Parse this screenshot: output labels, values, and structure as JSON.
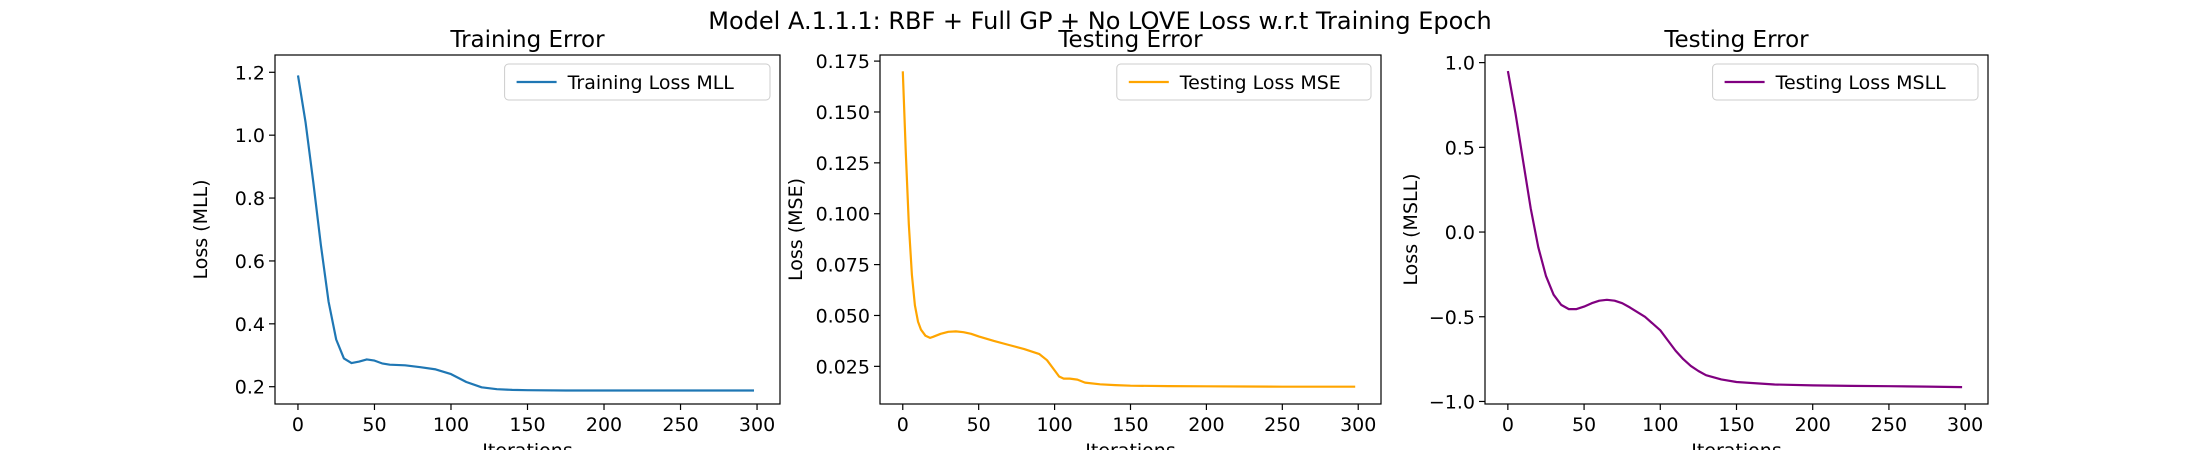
{
  "figure": {
    "suptitle": "Model A.1.1.1: RBF + Full GP + No LOVE Loss w.r.t Training Epoch"
  },
  "chart_data": [
    {
      "type": "line",
      "title": "Training Error",
      "xlabel": "Iterations",
      "ylabel": "Loss (MLL)",
      "xlim": [
        -15,
        315
      ],
      "ylim": [
        0.145,
        1.255
      ],
      "xticks": [
        0,
        50,
        100,
        150,
        200,
        250,
        300
      ],
      "xtick_labels": [
        "0",
        "50",
        "100",
        "150",
        "200",
        "250",
        "300"
      ],
      "yticks": [
        0.2,
        0.4,
        0.6,
        0.8,
        1.0,
        1.2
      ],
      "ytick_labels": [
        "0.2",
        "0.4",
        "0.6",
        "0.8",
        "1.0",
        "1.2"
      ],
      "legend_position": "upper right",
      "series": [
        {
          "name": "Training Loss MLL",
          "color": "#1f77b4",
          "x": [
            0,
            5,
            10,
            15,
            20,
            25,
            30,
            35,
            40,
            45,
            50,
            55,
            60,
            70,
            80,
            90,
            100,
            110,
            120,
            130,
            140,
            150,
            175,
            200,
            225,
            250,
            275,
            298
          ],
          "y": [
            1.19,
            1.04,
            0.85,
            0.65,
            0.47,
            0.35,
            0.29,
            0.275,
            0.28,
            0.287,
            0.283,
            0.274,
            0.27,
            0.268,
            0.262,
            0.255,
            0.24,
            0.215,
            0.198,
            0.192,
            0.19,
            0.189,
            0.188,
            0.188,
            0.188,
            0.188,
            0.188,
            0.188
          ]
        }
      ]
    },
    {
      "type": "line",
      "title": "Testing Error",
      "xlabel": "Iterations",
      "ylabel": "Loss (MSE)",
      "xlim": [
        -15,
        315
      ],
      "ylim": [
        0.0065,
        0.178
      ],
      "xticks": [
        0,
        50,
        100,
        150,
        200,
        250,
        300
      ],
      "xtick_labels": [
        "0",
        "50",
        "100",
        "150",
        "200",
        "250",
        "300"
      ],
      "yticks": [
        0.025,
        0.05,
        0.075,
        0.1,
        0.125,
        0.15,
        0.175
      ],
      "ytick_labels": [
        "0.025",
        "0.050",
        "0.075",
        "0.100",
        "0.125",
        "0.150",
        "0.175"
      ],
      "legend_position": "upper right",
      "series": [
        {
          "name": "Testing Loss MSE",
          "color": "#ffa500",
          "x": [
            0,
            2,
            4,
            6,
            8,
            10,
            12,
            15,
            18,
            20,
            25,
            30,
            35,
            40,
            45,
            50,
            60,
            70,
            80,
            90,
            95,
            100,
            103,
            106,
            110,
            115,
            120,
            130,
            140,
            150,
            175,
            200,
            225,
            250,
            275,
            298
          ],
          "y": [
            0.17,
            0.13,
            0.095,
            0.07,
            0.055,
            0.047,
            0.043,
            0.04,
            0.039,
            0.0395,
            0.041,
            0.042,
            0.0422,
            0.0418,
            0.041,
            0.0397,
            0.0375,
            0.0355,
            0.0335,
            0.031,
            0.028,
            0.023,
            0.02,
            0.019,
            0.019,
            0.0185,
            0.017,
            0.0162,
            0.0158,
            0.0155,
            0.0153,
            0.0152,
            0.0151,
            0.015,
            0.015,
            0.015
          ]
        }
      ]
    },
    {
      "type": "line",
      "title": "Testing Error",
      "xlabel": "Iterations",
      "ylabel": "Loss (MSLL)",
      "xlim": [
        -15,
        315
      ],
      "ylim": [
        -1.015,
        1.045
      ],
      "xticks": [
        0,
        50,
        100,
        150,
        200,
        250,
        300
      ],
      "xtick_labels": [
        "0",
        "50",
        "100",
        "150",
        "200",
        "250",
        "300"
      ],
      "yticks": [
        -1.0,
        -0.5,
        0.0,
        0.5,
        1.0
      ],
      "ytick_labels": [
        "−1.0",
        "−0.5",
        "0.0",
        "0.5",
        "1.0"
      ],
      "legend_position": "upper right",
      "series": [
        {
          "name": "Testing Loss MSLL",
          "color": "#800080",
          "x": [
            0,
            5,
            10,
            15,
            20,
            25,
            30,
            35,
            40,
            45,
            50,
            55,
            60,
            65,
            70,
            75,
            80,
            90,
            100,
            105,
            110,
            115,
            120,
            125,
            130,
            140,
            150,
            175,
            200,
            225,
            250,
            275,
            298
          ],
          "y": [
            0.95,
            0.7,
            0.42,
            0.14,
            -0.09,
            -0.26,
            -0.37,
            -0.43,
            -0.455,
            -0.455,
            -0.44,
            -0.42,
            -0.405,
            -0.4,
            -0.405,
            -0.42,
            -0.445,
            -0.5,
            -0.58,
            -0.64,
            -0.7,
            -0.75,
            -0.79,
            -0.82,
            -0.845,
            -0.87,
            -0.885,
            -0.9,
            -0.905,
            -0.908,
            -0.91,
            -0.912,
            -0.915
          ]
        }
      ]
    }
  ]
}
